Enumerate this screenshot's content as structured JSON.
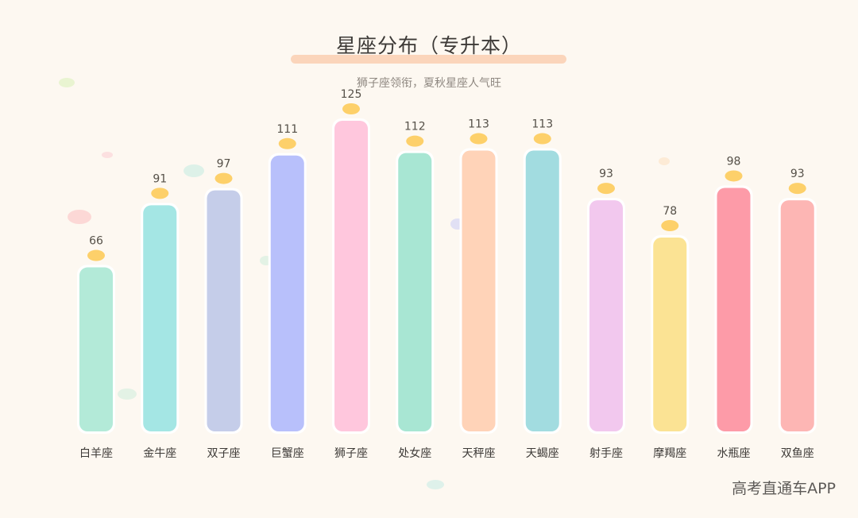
{
  "title": "星座分布（专升本）",
  "subtitle": "狮子座领衔，夏秋星座人气旺",
  "watermark": "高考直通车APP",
  "colors": {
    "background": "#fdf8f1",
    "title_underline": "#fbd5bb",
    "value_dot": "#fdd06a"
  },
  "chart_data": {
    "type": "bar",
    "title": "星座分布（专升本）",
    "subtitle": "狮子座领衔，夏秋星座人气旺",
    "categories": [
      "白羊座",
      "金牛座",
      "双子座",
      "巨蟹座",
      "狮子座",
      "处女座",
      "天秤座",
      "天蝎座",
      "射手座",
      "摩羯座",
      "水瓶座",
      "双鱼座"
    ],
    "values": [
      66,
      91,
      97,
      111,
      125,
      112,
      113,
      113,
      93,
      78,
      98,
      93
    ],
    "bar_colors": [
      "#b3ead8",
      "#a4e6e4",
      "#c5cde9",
      "#b8c0fb",
      "#ffc7dd",
      "#a8e6d3",
      "#ffd3b8",
      "#a2dce0",
      "#f2c8ee",
      "#fbe394",
      "#fd9ba8",
      "#fdb6b4"
    ],
    "ylim": [
      0,
      125
    ],
    "grid": false,
    "legend": "none",
    "data_labels": true
  }
}
